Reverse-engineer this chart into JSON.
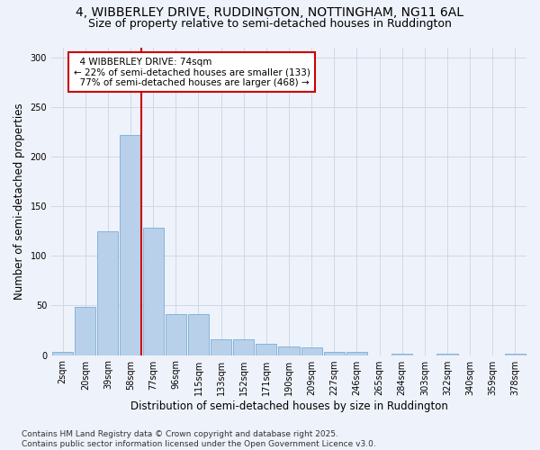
{
  "title_line1": "4, WIBBERLEY DRIVE, RUDDINGTON, NOTTINGHAM, NG11 6AL",
  "title_line2": "Size of property relative to semi-detached houses in Ruddington",
  "xlabel": "Distribution of semi-detached houses by size in Ruddington",
  "ylabel": "Number of semi-detached properties",
  "bar_labels": [
    "2sqm",
    "20sqm",
    "39sqm",
    "58sqm",
    "77sqm",
    "96sqm",
    "115sqm",
    "133sqm",
    "152sqm",
    "171sqm",
    "190sqm",
    "209sqm",
    "227sqm",
    "246sqm",
    "265sqm",
    "284sqm",
    "303sqm",
    "322sqm",
    "340sqm",
    "359sqm",
    "378sqm"
  ],
  "bar_values": [
    3,
    49,
    125,
    222,
    128,
    41,
    41,
    16,
    16,
    11,
    9,
    8,
    3,
    3,
    0,
    1,
    0,
    1,
    0,
    0,
    1
  ],
  "bar_color": "#b8d0ea",
  "bar_edge_color": "#7aadd4",
  "vline_color": "#cc0000",
  "annotation_box_color": "#cc0000",
  "annotation_bg": "#ffffff",
  "ylim": [
    0,
    310
  ],
  "yticks": [
    0,
    50,
    100,
    150,
    200,
    250,
    300
  ],
  "grid_color": "#d0d8e8",
  "bg_color": "#eef2fa",
  "footer_line1": "Contains HM Land Registry data © Crown copyright and database right 2025.",
  "footer_line2": "Contains public sector information licensed under the Open Government Licence v3.0.",
  "property_label": "4 WIBBERLEY DRIVE: 74sqm",
  "pct_smaller": 22,
  "pct_smaller_n": 133,
  "pct_larger": 77,
  "pct_larger_n": 468,
  "vline_x": 3.47,
  "title_fontsize": 10,
  "subtitle_fontsize": 9,
  "axis_label_fontsize": 8.5,
  "tick_fontsize": 7,
  "annotation_fontsize": 7.5,
  "footer_fontsize": 6.5
}
